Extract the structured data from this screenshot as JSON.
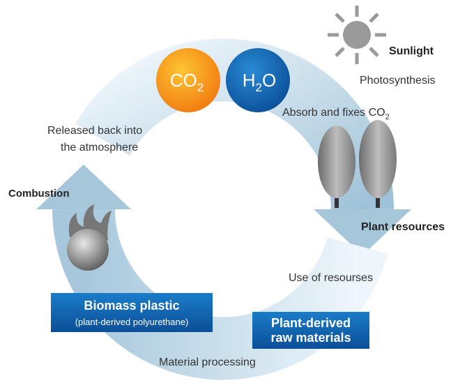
{
  "sunlight": "Sunlight",
  "photosynthesis": "Photosynthesis",
  "co2": {
    "main": "CO",
    "sub": "2"
  },
  "h2o": {
    "main": "H",
    "sub": "2",
    "rest": "O"
  },
  "absorb": {
    "main": "Absorb and fixes CO",
    "sub": "2"
  },
  "released": [
    "Released back into",
    "the atmosphere"
  ],
  "combustion": "Combustion",
  "plant_resources": "Plant resources",
  "use": "Use of resourses",
  "biomass": {
    "title": "Biomass plastic",
    "subtitle": "(plant-derived polyurethane)"
  },
  "raw": [
    "Plant-derived",
    "raw materials"
  ],
  "processing": "Material processing"
}
